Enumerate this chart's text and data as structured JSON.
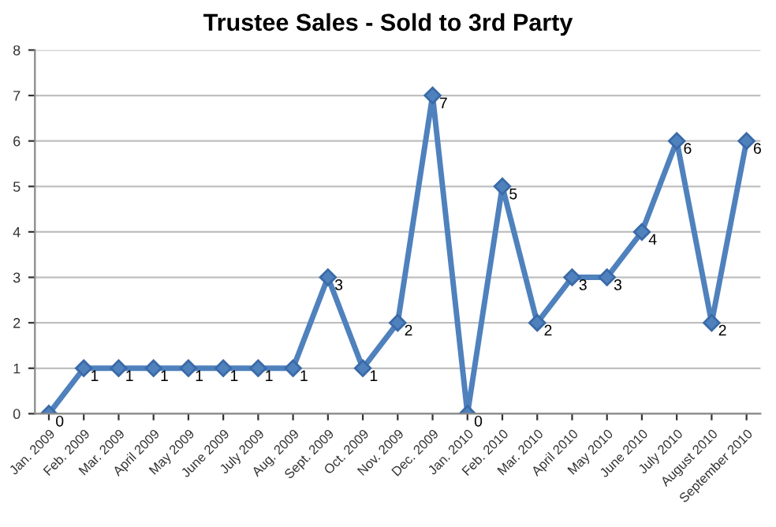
{
  "chart_data": {
    "type": "line",
    "title": "Trustee Sales - Sold to 3rd Party",
    "categories": [
      "Jan. 2009",
      "Feb. 2009",
      "Mar. 2009",
      "April 2009",
      "May 2009",
      "June 2009",
      "July 2009",
      "Aug. 2009",
      "Sept. 2009",
      "Oct. 2009",
      "Nov. 2009",
      "Dec. 2009",
      "Jan. 2010",
      "Feb. 2010",
      "Mar. 2010",
      "April 2010",
      "May 2010",
      "June 2010",
      "July 2010",
      "August 2010",
      "September 2010"
    ],
    "series": [
      {
        "color": "#4f81bd",
        "values": [
          0,
          1,
          1,
          1,
          1,
          1,
          1,
          1,
          3,
          1,
          2,
          7,
          0,
          5,
          2,
          3,
          3,
          4,
          6,
          2,
          6
        ]
      }
    ],
    "ylim": [
      0,
      8
    ],
    "yticks": [
      0,
      1,
      2,
      3,
      4,
      5,
      6,
      7,
      8
    ],
    "grid": "y",
    "marker": "diamond",
    "line_style": "solid",
    "data_labels": true,
    "legend": false
  }
}
